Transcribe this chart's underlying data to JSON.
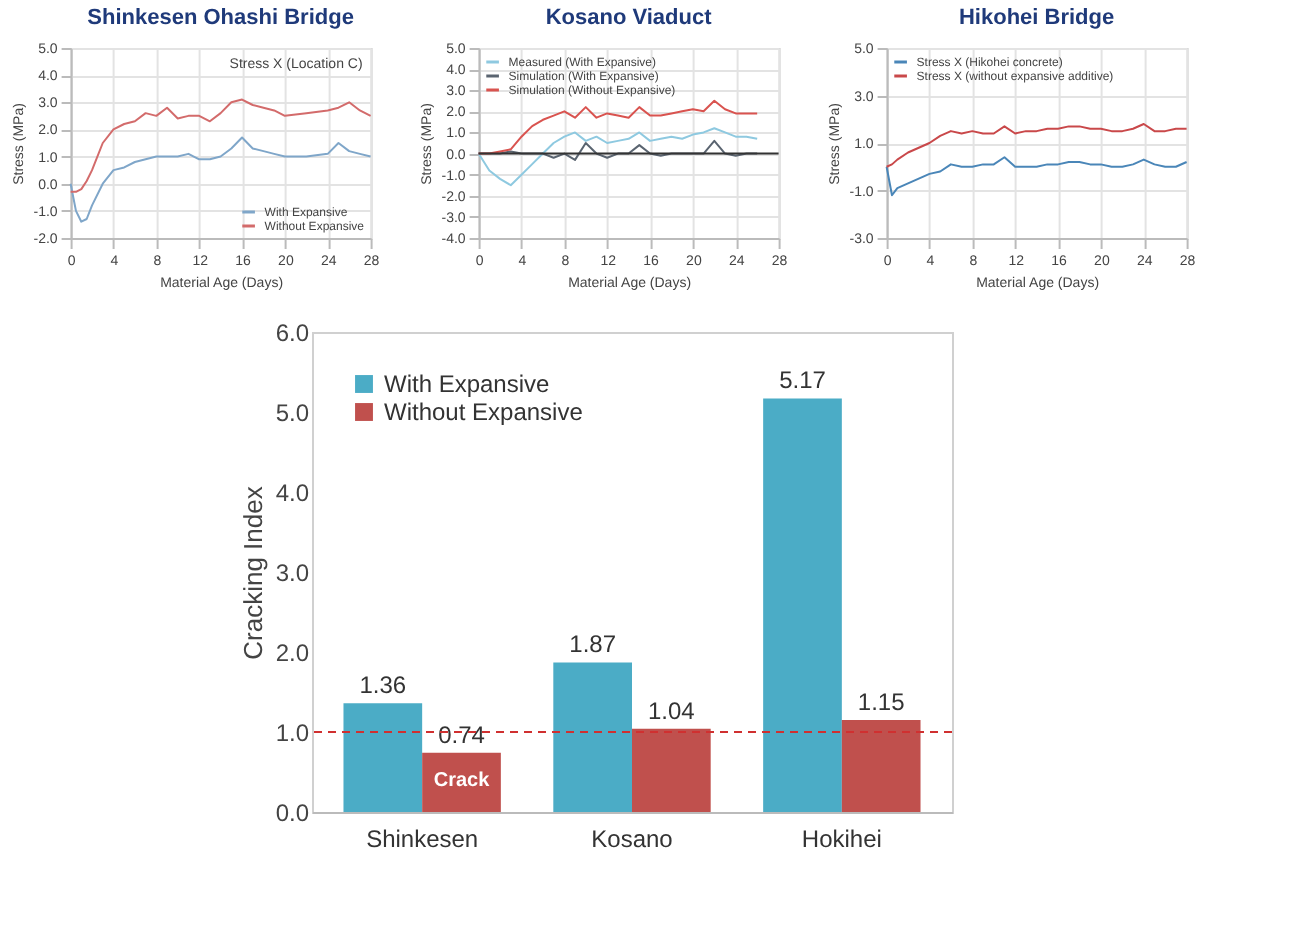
{
  "chart_data": [
    {
      "type": "line",
      "title": "Shinkesen Ohashi Bridge",
      "xlabel": "Material Age (Days)",
      "ylabel": "Stress (MPa)",
      "annotations": [
        "Stress X (Location C)"
      ],
      "xlim": [
        0,
        28
      ],
      "xticks": [
        0,
        4,
        8,
        12,
        16,
        20,
        24,
        28
      ],
      "ylim": [
        -2,
        5
      ],
      "yticks": [
        {
          "value": -2,
          "label": "-2.0"
        },
        {
          "value": -1,
          "label": "-1.0"
        },
        {
          "value": 0,
          "label": "0.0"
        },
        {
          "value": 1,
          "label": "1.0"
        },
        {
          "value": 2,
          "label": "2.0"
        },
        {
          "value": 3,
          "label": "3.0"
        },
        {
          "value": 4,
          "label": "4.0"
        },
        {
          "value": 5,
          "label": "5.0"
        }
      ],
      "grid": true,
      "legend": "bottom right",
      "series": [
        {
          "name": "With Expansive",
          "color": "#7fa6c9",
          "x": [
            0,
            0.5,
            1,
            1.5,
            2,
            3,
            4,
            5,
            6,
            7,
            8,
            9,
            10,
            11,
            12,
            13,
            14,
            15,
            16,
            17,
            18,
            19,
            20,
            22,
            24,
            25,
            26,
            27,
            28
          ],
          "values": [
            0,
            -1.0,
            -1.4,
            -1.3,
            -0.8,
            0,
            0.5,
            0.6,
            0.8,
            0.9,
            1.0,
            1.0,
            1.0,
            1.1,
            0.9,
            0.9,
            1.0,
            1.3,
            1.7,
            1.3,
            1.2,
            1.1,
            1.0,
            1.0,
            1.1,
            1.5,
            1.2,
            1.1,
            1.0
          ]
        },
        {
          "name": "Without Expansive",
          "color": "#d36b6b",
          "x": [
            0,
            0.5,
            1,
            1.5,
            2,
            3,
            4,
            5,
            6,
            7,
            8,
            9,
            10,
            11,
            12,
            13,
            14,
            15,
            16,
            17,
            18,
            19,
            20,
            22,
            24,
            25,
            26,
            27,
            28
          ],
          "values": [
            -0.3,
            -0.3,
            -0.2,
            0.1,
            0.5,
            1.5,
            2.0,
            2.2,
            2.3,
            2.6,
            2.5,
            2.8,
            2.4,
            2.5,
            2.5,
            2.3,
            2.6,
            3.0,
            3.1,
            2.9,
            2.8,
            2.7,
            2.5,
            2.6,
            2.7,
            2.8,
            3.0,
            2.7,
            2.5
          ]
        }
      ]
    },
    {
      "type": "line",
      "title": "Kosano Viaduct",
      "xlabel": "Material Age (Days)",
      "ylabel": "Stress (MPa)",
      "xlim": [
        0,
        28
      ],
      "xticks": [
        0,
        4,
        8,
        12,
        16,
        20,
        24,
        28
      ],
      "ylim": [
        -4,
        5
      ],
      "yticks": [
        {
          "value": -4,
          "label": "-4.0"
        },
        {
          "value": -3,
          "label": "-3.0"
        },
        {
          "value": -2,
          "label": "-2.0"
        },
        {
          "value": -1,
          "label": "-1.0"
        },
        {
          "value": 0,
          "label": "0.0"
        },
        {
          "value": 1,
          "label": "1.0"
        },
        {
          "value": 2,
          "label": "2.0"
        },
        {
          "value": 3,
          "label": "3.0"
        },
        {
          "value": 4,
          "label": "4.0"
        },
        {
          "value": 5,
          "label": "5.0"
        }
      ],
      "grid": true,
      "legend": "top left",
      "ref_lines": [
        {
          "axis": "y",
          "value": 0,
          "color": "#333333"
        }
      ],
      "series": [
        {
          "name": "Measured (With Expansive)",
          "color": "#8ec9e0",
          "x": [
            0,
            1,
            2,
            3,
            4,
            5,
            6,
            7,
            8,
            9,
            10,
            11,
            12,
            13,
            14,
            15,
            16,
            17,
            18,
            19,
            20,
            21,
            22,
            23,
            24,
            25,
            26
          ],
          "values": [
            0,
            -0.8,
            -1.2,
            -1.5,
            -1.0,
            -0.5,
            0,
            0.5,
            0.8,
            1.0,
            0.6,
            0.8,
            0.5,
            0.6,
            0.7,
            1.0,
            0.6,
            0.7,
            0.8,
            0.7,
            0.9,
            1.0,
            1.2,
            1.0,
            0.8,
            0.8,
            0.7
          ]
        },
        {
          "name": "Simulation (With Expansive)",
          "color": "#5a6470",
          "x": [
            0,
            1,
            2,
            3,
            4,
            5,
            6,
            7,
            8,
            9,
            10,
            11,
            12,
            13,
            14,
            15,
            16,
            17,
            18,
            19,
            20,
            21,
            22,
            23,
            24,
            25,
            26
          ],
          "values": [
            0,
            0,
            0,
            0.1,
            0,
            0,
            0,
            -0.2,
            0,
            -0.3,
            0.5,
            0,
            -0.2,
            0,
            0,
            0.4,
            0,
            -0.1,
            0,
            0,
            0,
            0,
            0.6,
            0,
            -0.1,
            0,
            0
          ]
        },
        {
          "name": "Simulation (Without Expansive)",
          "color": "#d9534f",
          "x": [
            0,
            1,
            2,
            3,
            4,
            5,
            6,
            7,
            8,
            9,
            10,
            11,
            12,
            13,
            14,
            15,
            16,
            17,
            18,
            19,
            20,
            21,
            22,
            23,
            24,
            25,
            26
          ],
          "values": [
            0,
            0,
            0.1,
            0.2,
            0.8,
            1.3,
            1.6,
            1.8,
            2.0,
            1.7,
            2.2,
            1.7,
            1.9,
            1.8,
            1.7,
            2.2,
            1.8,
            1.8,
            1.9,
            2.0,
            2.1,
            2.0,
            2.5,
            2.1,
            1.9,
            1.9,
            1.9
          ]
        }
      ]
    },
    {
      "type": "line",
      "title": "Hikohei Bridge",
      "xlabel": "Material Age (Days)",
      "ylabel": "Stress (MPa)",
      "xlim": [
        0,
        28
      ],
      "xticks": [
        0,
        4,
        8,
        12,
        16,
        20,
        24,
        28
      ],
      "ylim": [
        -3,
        5
      ],
      "yticks": [
        {
          "value": -3,
          "label": "-3.0"
        },
        {
          "value": -1,
          "label": "-1.0"
        },
        {
          "value": 1,
          "label": "1.0"
        },
        {
          "value": 3,
          "label": "3.0"
        },
        {
          "value": 5,
          "label": "5.0"
        }
      ],
      "grid": true,
      "legend": "top left",
      "series": [
        {
          "name": "Stress X (Hikohei concrete)",
          "color": "#4a86b8",
          "x": [
            0,
            0.5,
            1,
            2,
            3,
            4,
            5,
            6,
            7,
            8,
            9,
            10,
            11,
            12,
            13,
            14,
            15,
            16,
            17,
            18,
            19,
            20,
            21,
            22,
            23,
            24,
            25,
            26,
            27,
            28
          ],
          "values": [
            0,
            -1.2,
            -0.9,
            -0.7,
            -0.5,
            -0.3,
            -0.2,
            0.1,
            0,
            0,
            0.1,
            0.1,
            0.4,
            0,
            0,
            0,
            0.1,
            0.1,
            0.2,
            0.2,
            0.1,
            0.1,
            0,
            0,
            0.1,
            0.3,
            0.1,
            0,
            0,
            0.2
          ]
        },
        {
          "name": "Stress X (without expansive additive)",
          "color": "#c9484a",
          "x": [
            0,
            0.5,
            1,
            2,
            3,
            4,
            5,
            6,
            7,
            8,
            9,
            10,
            11,
            12,
            13,
            14,
            15,
            16,
            17,
            18,
            19,
            20,
            21,
            22,
            23,
            24,
            25,
            26,
            27,
            28
          ],
          "values": [
            0,
            0.1,
            0.3,
            0.6,
            0.8,
            1.0,
            1.3,
            1.5,
            1.4,
            1.5,
            1.4,
            1.4,
            1.7,
            1.4,
            1.5,
            1.5,
            1.6,
            1.6,
            1.7,
            1.7,
            1.6,
            1.6,
            1.5,
            1.5,
            1.6,
            1.8,
            1.5,
            1.5,
            1.6,
            1.6
          ]
        }
      ]
    },
    {
      "type": "bar",
      "ylabel": "Cracking Index",
      "categories": [
        "Shinkesen",
        "Kosano",
        "Hokihei"
      ],
      "ylim": [
        0,
        6
      ],
      "yticks": [
        {
          "value": 0,
          "label": "0.0"
        },
        {
          "value": 1,
          "label": "1.0"
        },
        {
          "value": 2,
          "label": "2.0"
        },
        {
          "value": 3,
          "label": "3.0"
        },
        {
          "value": 4,
          "label": "4.0"
        },
        {
          "value": 5,
          "label": "5.0"
        },
        {
          "value": 6,
          "label": "6.0"
        }
      ],
      "legend": "top left",
      "data_labels": true,
      "ref_lines": [
        {
          "axis": "y",
          "value": 1,
          "color": "#d03030",
          "line_style": "dashed"
        }
      ],
      "annotations": [
        {
          "text": "Crack",
          "x": "Shinkesen",
          "y": 0.4
        }
      ],
      "series": [
        {
          "name": "With Expansive",
          "color": "#4bacc6",
          "values": [
            1.36,
            1.87,
            5.17
          ]
        },
        {
          "name": "Without Expansive",
          "color": "#c0504d",
          "values": [
            0.74,
            1.04,
            1.15
          ]
        }
      ]
    }
  ]
}
